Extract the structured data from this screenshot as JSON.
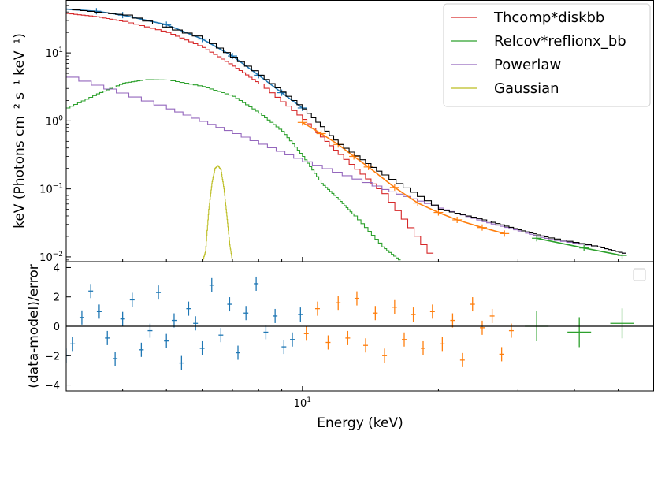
{
  "chart_data": [
    {
      "type": "line",
      "panel": "spectrum",
      "ylabel": "keV (Photons cm⁻² s⁻¹ keV⁻¹)",
      "y_scale": "log",
      "x_scale": "log",
      "xlim": [
        3.0,
        60.0
      ],
      "ylim": [
        0.0085,
        60.0
      ],
      "yticks": [
        {
          "value": 0.01,
          "base": "10",
          "exp": "−2"
        },
        {
          "value": 0.1,
          "base": "10",
          "exp": "−1"
        },
        {
          "value": 1,
          "base": "10",
          "exp": "0"
        },
        {
          "value": 10,
          "base": "10",
          "exp": "1"
        }
      ],
      "legend": {
        "placement": "top-right",
        "entries": [
          {
            "name": "Thcomp*diskbb",
            "color": "#d62728"
          },
          {
            "name": "Relcov*reflionx_bb",
            "color": "#2ca02c"
          },
          {
            "name": "Powerlaw",
            "color": "#9467bd"
          },
          {
            "name": "Gaussian",
            "color": "#bcbd22"
          }
        ]
      },
      "series": [
        {
          "name": "Thcomp*diskbb",
          "color": "#d62728",
          "style": "step",
          "x": [
            3.0,
            3.5,
            4.0,
            5.0,
            6.0,
            7.0,
            8.0,
            10.0,
            12.0,
            15.0,
            19.5
          ],
          "y": [
            38,
            34,
            29,
            20,
            12,
            6.4,
            3.5,
            1.05,
            0.32,
            0.085,
            0.0085
          ]
        },
        {
          "name": "Relcov*reflionx_bb",
          "color": "#2ca02c",
          "style": "step",
          "x": [
            3.0,
            3.5,
            4.0,
            4.5,
            5.0,
            6.0,
            7.0,
            8.0,
            9.0,
            10.0,
            11.0,
            12.0,
            13.0,
            15.0,
            16.5
          ],
          "y": [
            1.55,
            2.5,
            3.6,
            4.05,
            4.0,
            3.2,
            2.3,
            1.3,
            0.7,
            0.3,
            0.12,
            0.07,
            0.04,
            0.014,
            0.0085
          ]
        },
        {
          "name": "Powerlaw",
          "color": "#9467bd",
          "style": "step",
          "x": [
            3.0,
            5.0,
            7.0,
            10.0,
            15.0,
            20.0,
            25.0,
            30.0,
            35.0,
            45.0,
            52.0
          ],
          "y": [
            4.4,
            1.5,
            0.65,
            0.25,
            0.098,
            0.052,
            0.033,
            0.024,
            0.018,
            0.014,
            0.011
          ]
        },
        {
          "name": "Gaussian",
          "color": "#bcbd22",
          "style": "step",
          "x": [
            6.0,
            6.1,
            6.2,
            6.3,
            6.4,
            6.5,
            6.6,
            6.7,
            6.8,
            6.9,
            7.0,
            7.1
          ],
          "y": [
            0.0085,
            0.012,
            0.05,
            0.12,
            0.2,
            0.22,
            0.19,
            0.1,
            0.04,
            0.015,
            0.0085,
            0.0085
          ]
        },
        {
          "name": "",
          "color": "#1f77b4",
          "style": "data",
          "x": [
            3.0,
            3.5,
            4.0,
            5.0,
            6.0,
            7.0,
            8.0,
            9.0,
            10.0
          ],
          "y": [
            44,
            41,
            36,
            26,
            16,
            9.0,
            4.7,
            2.6,
            1.55
          ]
        },
        {
          "name": "",
          "color": "#ff7f0e",
          "style": "data",
          "x": [
            10.0,
            11.0,
            12.0,
            13.0,
            14.0,
            16.0,
            18.0,
            20.0,
            22.0,
            25.0,
            28.0
          ],
          "y": [
            0.95,
            0.65,
            0.45,
            0.3,
            0.21,
            0.105,
            0.062,
            0.045,
            0.035,
            0.027,
            0.022
          ]
        },
        {
          "name": "",
          "color": "#2ca02c",
          "style": "data",
          "x": [
            33.0,
            42.0,
            51.0
          ],
          "y": [
            0.0188,
            0.0135,
            0.0105
          ]
        },
        {
          "name": "",
          "color": "#000000",
          "style": "step",
          "x": [
            3.0,
            4.0,
            6.0,
            8.0,
            10.0,
            12.0,
            15.0,
            20.0,
            25.0,
            30.0,
            35.0,
            45.0,
            52.0
          ],
          "y": [
            44,
            36,
            16,
            4.7,
            1.5,
            0.45,
            0.16,
            0.05,
            0.035,
            0.025,
            0.019,
            0.014,
            0.011
          ]
        }
      ]
    },
    {
      "type": "scatter",
      "panel": "residuals",
      "xlabel": "Energy (keV)",
      "ylabel": "(data-model)/error",
      "x_scale": "log",
      "xlim": [
        3.0,
        60.0
      ],
      "ylim": [
        -4.4,
        4.4
      ],
      "yticks": [
        -4,
        -2,
        0,
        2,
        4
      ],
      "xticks": [
        {
          "value": 10,
          "base": "10",
          "exp": "1"
        }
      ],
      "series": [
        {
          "name": "",
          "color": "#1f77b4",
          "x": [
            3.0,
            3.1,
            3.25,
            3.4,
            3.55,
            3.7,
            3.85,
            4.0,
            4.2,
            4.4,
            4.6,
            4.8,
            5.0,
            5.2,
            5.4,
            5.6,
            5.8,
            6.0,
            6.3,
            6.6,
            6.9,
            7.2,
            7.5,
            7.9,
            8.3,
            8.7,
            9.1,
            9.5,
            9.9
          ],
          "y": [
            -2.0,
            -1.2,
            0.6,
            2.4,
            1.0,
            -0.8,
            -2.2,
            0.5,
            1.8,
            -1.6,
            -0.3,
            2.3,
            -1.0,
            0.4,
            -2.5,
            1.2,
            0.2,
            -1.5,
            2.8,
            -0.6,
            1.5,
            -1.8,
            0.9,
            2.9,
            -0.4,
            0.7,
            -1.4,
            -0.9,
            0.8
          ]
        },
        {
          "name": "",
          "color": "#ff7f0e",
          "x": [
            10.2,
            10.8,
            11.4,
            12.0,
            12.6,
            13.2,
            13.8,
            14.5,
            15.2,
            16.0,
            16.8,
            17.6,
            18.5,
            19.4,
            20.4,
            21.5,
            22.6,
            23.8,
            25.0,
            26.3,
            27.6,
            29.0
          ],
          "y": [
            -0.5,
            1.2,
            -1.1,
            1.6,
            -0.8,
            1.9,
            -1.3,
            0.9,
            -2.0,
            1.3,
            -0.9,
            0.8,
            -1.5,
            1.0,
            -1.2,
            0.4,
            -2.3,
            1.5,
            -0.1,
            0.7,
            -1.9,
            -0.3
          ]
        },
        {
          "name": "",
          "color": "#2ca02c",
          "x": [
            33.0,
            41.0,
            51.0
          ],
          "y": [
            0.0,
            -0.4,
            0.2
          ]
        }
      ]
    }
  ]
}
